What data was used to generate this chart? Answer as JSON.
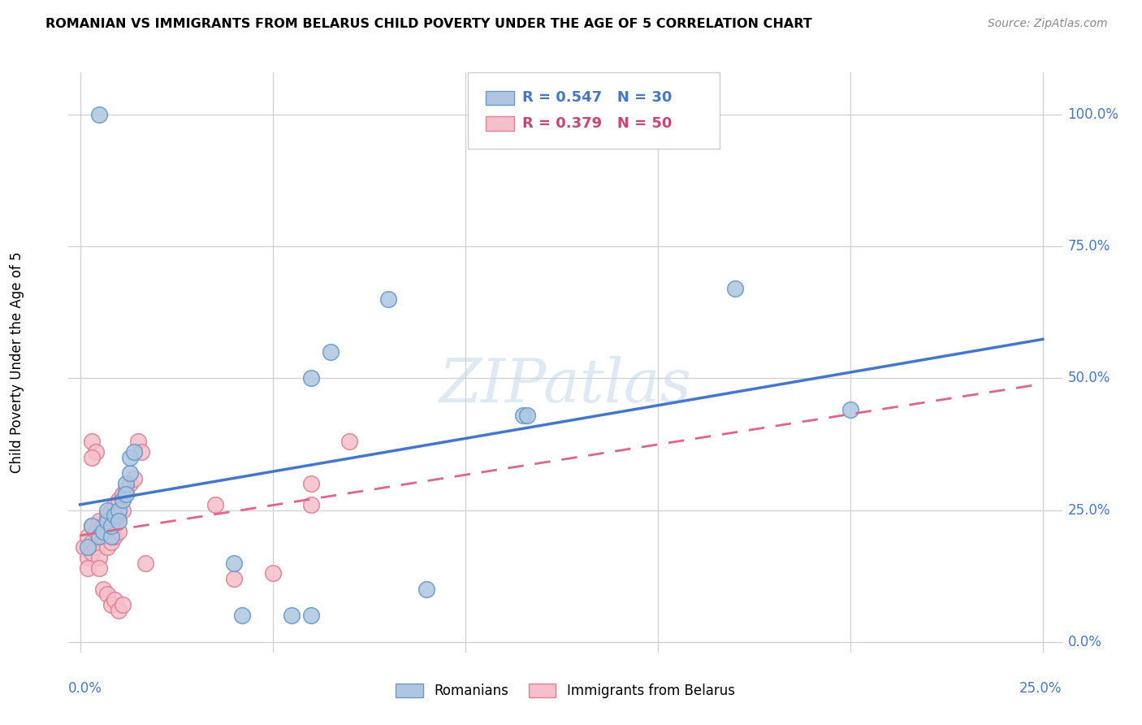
{
  "title": "ROMANIAN VS IMMIGRANTS FROM BELARUS CHILD POVERTY UNDER THE AGE OF 5 CORRELATION CHART",
  "source": "Source: ZipAtlas.com",
  "ylabel": "Child Poverty Under the Age of 5",
  "ytick_labels": [
    "0.0%",
    "25.0%",
    "50.0%",
    "75.0%",
    "100.0%"
  ],
  "ytick_values": [
    0.0,
    0.25,
    0.5,
    0.75,
    1.0
  ],
  "xlim": [
    -0.003,
    0.255
  ],
  "ylim": [
    -0.02,
    1.08
  ],
  "romanians_color": "#aec6e0",
  "romanians_edge": "#6699cc",
  "belarus_color": "#f5bfcc",
  "belarus_edge": "#e08090",
  "line_blue_color": "#4477cc",
  "line_pink_color": "#dd6688",
  "watermark": "ZIPatlas",
  "romanians_x": [
    0.002,
    0.003,
    0.005,
    0.006,
    0.007,
    0.007,
    0.008,
    0.008,
    0.009,
    0.01,
    0.01,
    0.011,
    0.012,
    0.012,
    0.013,
    0.013,
    0.014,
    0.04,
    0.042,
    0.055,
    0.06,
    0.06,
    0.065,
    0.08,
    0.09,
    0.115,
    0.116,
    0.17,
    0.2,
    0.005
  ],
  "romanians_y": [
    0.18,
    0.22,
    0.2,
    0.21,
    0.23,
    0.25,
    0.2,
    0.22,
    0.24,
    0.25,
    0.23,
    0.27,
    0.3,
    0.28,
    0.32,
    0.35,
    0.36,
    0.15,
    0.05,
    0.05,
    0.05,
    0.5,
    0.55,
    0.65,
    0.1,
    0.43,
    0.43,
    0.67,
    0.44,
    1.0
  ],
  "belarus_x": [
    0.001,
    0.002,
    0.002,
    0.003,
    0.003,
    0.003,
    0.004,
    0.004,
    0.005,
    0.005,
    0.005,
    0.006,
    0.006,
    0.007,
    0.007,
    0.007,
    0.008,
    0.008,
    0.008,
    0.009,
    0.009,
    0.009,
    0.01,
    0.01,
    0.01,
    0.011,
    0.011,
    0.012,
    0.013,
    0.014,
    0.015,
    0.016,
    0.017,
    0.035,
    0.04,
    0.05,
    0.06,
    0.06,
    0.07,
    0.002,
    0.003,
    0.004,
    0.005,
    0.006,
    0.007,
    0.008,
    0.009,
    0.01,
    0.011,
    0.003
  ],
  "belarus_y": [
    0.18,
    0.2,
    0.16,
    0.22,
    0.19,
    0.17,
    0.21,
    0.18,
    0.23,
    0.2,
    0.16,
    0.22,
    0.2,
    0.24,
    0.21,
    0.18,
    0.25,
    0.22,
    0.19,
    0.26,
    0.23,
    0.2,
    0.27,
    0.24,
    0.21,
    0.28,
    0.25,
    0.29,
    0.3,
    0.31,
    0.38,
    0.36,
    0.15,
    0.26,
    0.12,
    0.13,
    0.26,
    0.3,
    0.38,
    0.14,
    0.38,
    0.36,
    0.14,
    0.1,
    0.09,
    0.07,
    0.08,
    0.06,
    0.07,
    0.35
  ]
}
